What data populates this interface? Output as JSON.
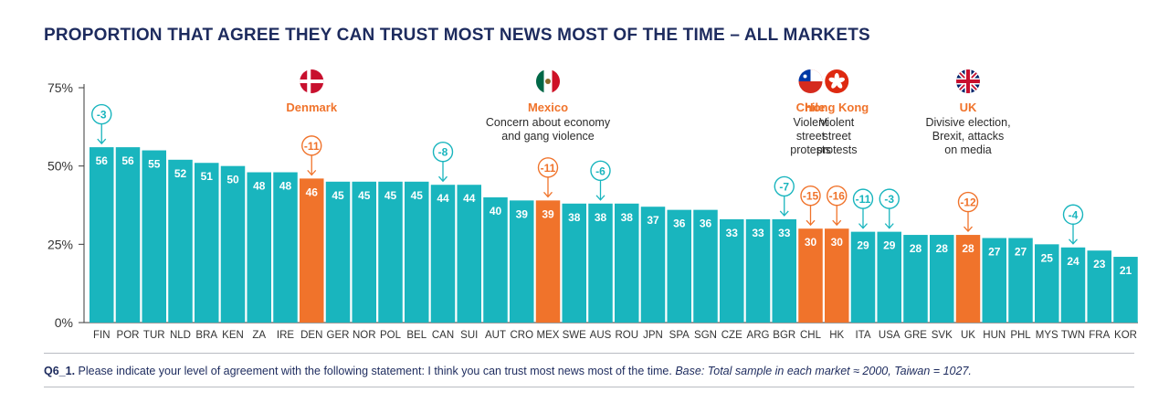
{
  "title": "PROPORTION THAT AGREE THEY CAN TRUST MOST NEWS MOST OF THE TIME – ALL MARKETS",
  "colors": {
    "teal": "#19b5be",
    "orange": "#f0732b",
    "navy": "#1d2b5e",
    "axis": "#3a3a3a"
  },
  "chart_data": {
    "type": "bar",
    "title": "PROPORTION THAT AGREE THEY CAN TRUST MOST NEWS MOST OF THE TIME – ALL MARKETS",
    "xlabel": "",
    "ylabel": "",
    "ylim": [
      0,
      75
    ],
    "yticks": [
      {
        "value": 0,
        "label": "0%"
      },
      {
        "value": 25,
        "label": "25%"
      },
      {
        "value": 50,
        "label": "50%"
      },
      {
        "value": 75,
        "label": "75%"
      }
    ],
    "categories": [
      "FIN",
      "POR",
      "TUR",
      "NLD",
      "BRA",
      "KEN",
      "ZA",
      "IRE",
      "DEN",
      "GER",
      "NOR",
      "POL",
      "BEL",
      "CAN",
      "SUI",
      "AUT",
      "CRO",
      "MEX",
      "SWE",
      "AUS",
      "ROU",
      "JPN",
      "SPA",
      "SGN",
      "CZE",
      "ARG",
      "BGR",
      "CHL",
      "HK",
      "ITA",
      "USA",
      "GRE",
      "SVK",
      "UK",
      "HUN",
      "PHL",
      "MYS",
      "TWN",
      "FRA",
      "KOR"
    ],
    "values": [
      56,
      56,
      55,
      52,
      51,
      50,
      48,
      48,
      46,
      45,
      45,
      45,
      45,
      44,
      44,
      40,
      39,
      39,
      38,
      38,
      38,
      37,
      36,
      36,
      33,
      33,
      33,
      30,
      30,
      29,
      29,
      28,
      28,
      28,
      27,
      27,
      25,
      24,
      23,
      21
    ],
    "data_labels": [
      "56",
      "56",
      "55",
      "52",
      "51",
      "50",
      "48",
      "48",
      "46",
      "45",
      "45",
      "45",
      "45",
      "44",
      "44",
      "40",
      "39",
      "39",
      "38",
      "38",
      "38",
      "37",
      "36",
      "36",
      "33",
      "33",
      "33",
      "30",
      "30",
      "29",
      "29",
      "28",
      "28",
      "28",
      "27",
      "27",
      "25",
      "24",
      "23",
      "21"
    ],
    "highlighted": [
      "DEN",
      "MEX",
      "CHL",
      "HK",
      "UK"
    ],
    "changes": [
      {
        "category": "FIN",
        "label": "-3",
        "color": "teal"
      },
      {
        "category": "DEN",
        "label": "-11",
        "color": "orange"
      },
      {
        "category": "CAN",
        "label": "-8",
        "color": "teal"
      },
      {
        "category": "MEX",
        "label": "-11",
        "color": "orange"
      },
      {
        "category": "AUS",
        "label": "-6",
        "color": "teal"
      },
      {
        "category": "BGR",
        "label": "-7",
        "color": "teal"
      },
      {
        "category": "CHL",
        "label": "-15",
        "color": "orange"
      },
      {
        "category": "HK",
        "label": "-16",
        "color": "orange"
      },
      {
        "category": "ITA",
        "label": "-11",
        "color": "teal"
      },
      {
        "category": "USA",
        "label": "-3",
        "color": "teal"
      },
      {
        "category": "UK",
        "label": "-12",
        "color": "orange"
      },
      {
        "category": "TWN",
        "label": "-4",
        "color": "teal"
      }
    ],
    "annotations": [
      {
        "category": "DEN",
        "flag": "denmark-flag-icon",
        "name": "Denmark",
        "lines": []
      },
      {
        "category": "MEX",
        "flag": "mexico-flag-icon",
        "name": "Mexico",
        "lines": [
          "Concern about economy",
          "and gang violence"
        ]
      },
      {
        "category": "CHL",
        "flag": "chile-flag-icon",
        "name": "Chile",
        "lines": [
          "Violent",
          "street",
          "protests"
        ]
      },
      {
        "category": "HK",
        "flag": "hong-kong-flag-icon",
        "name": "Hong Kong",
        "lines": [
          "Violent",
          "street",
          "protests"
        ]
      },
      {
        "category": "UK",
        "flag": "uk-flag-icon",
        "name": "UK",
        "lines": [
          "Divisive election,",
          "Brexit, attacks",
          "on media"
        ]
      }
    ]
  },
  "footer": {
    "question_id": "Q6_1.",
    "question_text": " Please indicate your level of agreement with the following statement: I think you can trust most news most of the time. ",
    "base_text": "Base: Total sample in each market ≈ 2000, Taiwan = 1027."
  }
}
